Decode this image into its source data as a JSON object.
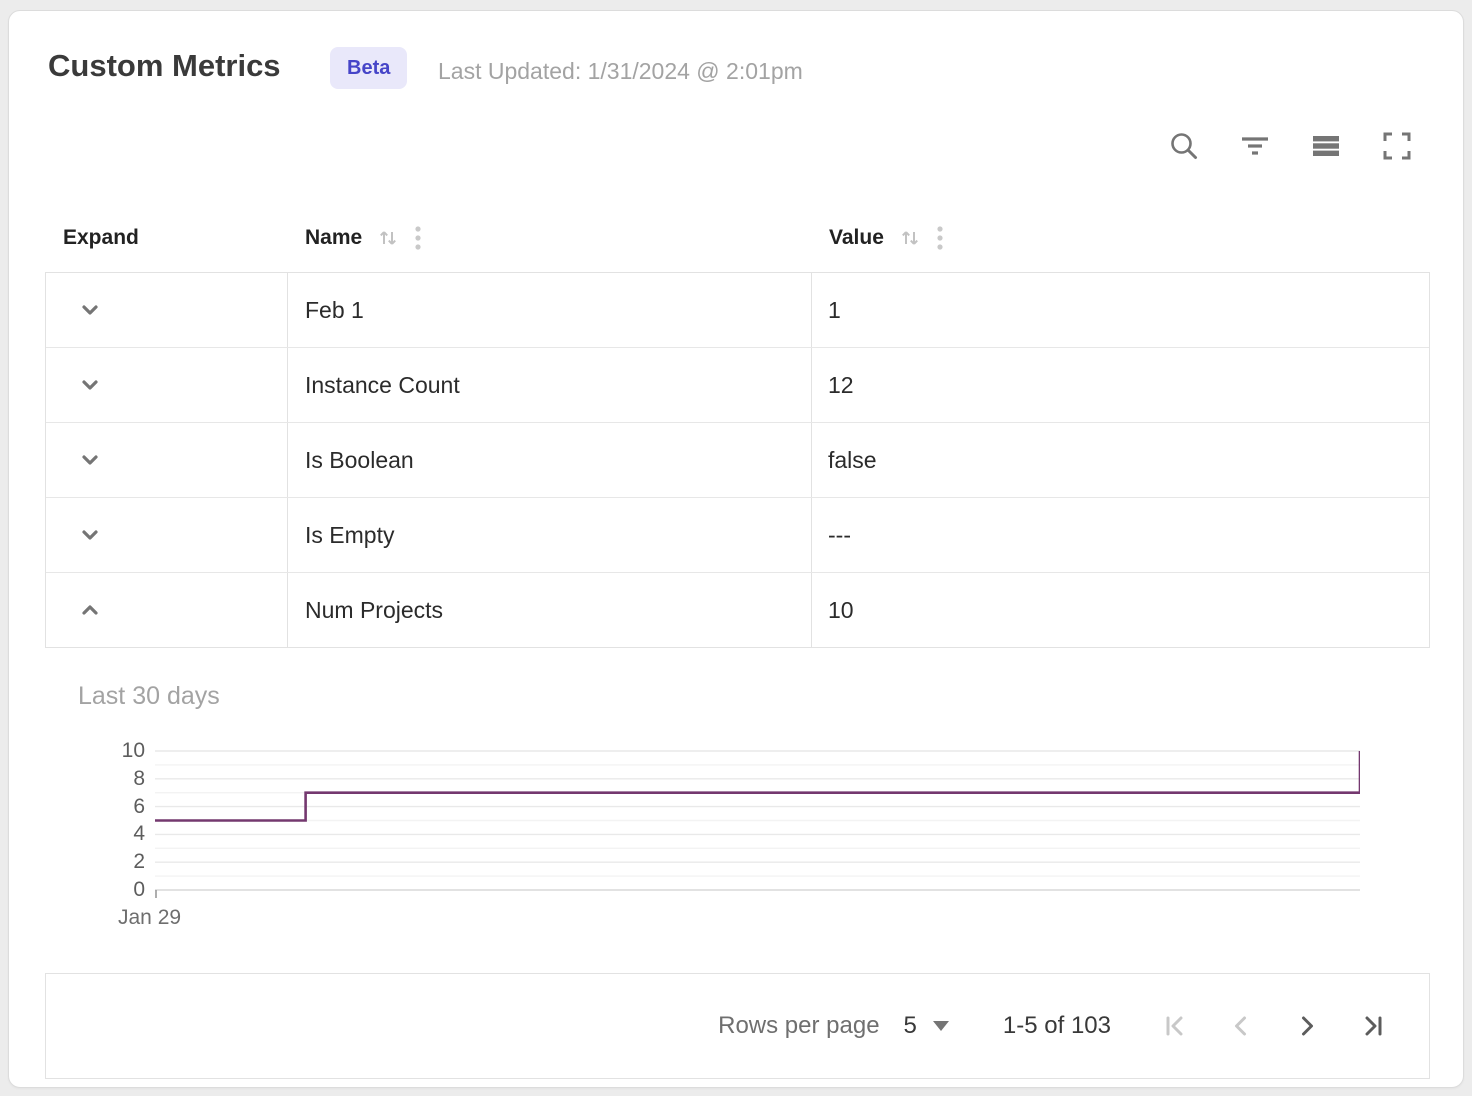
{
  "header": {
    "title": "Custom Metrics",
    "badge": "Beta",
    "last_updated": "Last Updated: 1/31/2024 @ 2:01pm"
  },
  "toolbar": {
    "icons": [
      "search-icon",
      "filter-icon",
      "density-icon",
      "fullscreen-icon"
    ]
  },
  "table": {
    "columns": [
      {
        "label": "Expand",
        "sortable": false
      },
      {
        "label": "Name",
        "sortable": true
      },
      {
        "label": "Value",
        "sortable": true
      }
    ],
    "rows": [
      {
        "name": "Feb 1",
        "value": "1",
        "expanded": false
      },
      {
        "name": "Instance Count",
        "value": "12",
        "expanded": false
      },
      {
        "name": "Is Boolean",
        "value": "false",
        "expanded": false
      },
      {
        "name": "Is Empty",
        "value": "---",
        "expanded": false
      },
      {
        "name": "Num Projects",
        "value": "10",
        "expanded": true
      }
    ]
  },
  "detail_panel": {
    "title": "Last 30 days"
  },
  "chart_data": {
    "type": "line",
    "step": "before",
    "title": "Last 30 days",
    "xlabel": "",
    "ylabel": "",
    "ylim": [
      0,
      10
    ],
    "y_ticks": [
      0,
      2,
      4,
      6,
      8,
      10
    ],
    "x_tick_labels": [
      "Jan 29"
    ],
    "grid": "horizontal lines every 1 unit",
    "legend": "none",
    "line_color": "#74386f",
    "points": [
      {
        "x_frac": 0.0,
        "y": 5
      },
      {
        "x_frac": 0.125,
        "y": 7
      },
      {
        "x_frac": 1.0,
        "y": 10
      }
    ]
  },
  "pagination": {
    "rows_per_page_label": "Rows per page",
    "rows_per_page": "5",
    "range": "1-5 of 103",
    "nav": [
      {
        "name": "first-page",
        "enabled": false
      },
      {
        "name": "prev-page",
        "enabled": false
      },
      {
        "name": "next-page",
        "enabled": true
      },
      {
        "name": "last-page",
        "enabled": true
      }
    ]
  },
  "colors": {
    "accent_line": "#74386f",
    "badge_bg": "#e9e8fa",
    "badge_text": "#4645c8",
    "icon_gray": "#757575",
    "disabled_icon": "#c8c8c8"
  }
}
